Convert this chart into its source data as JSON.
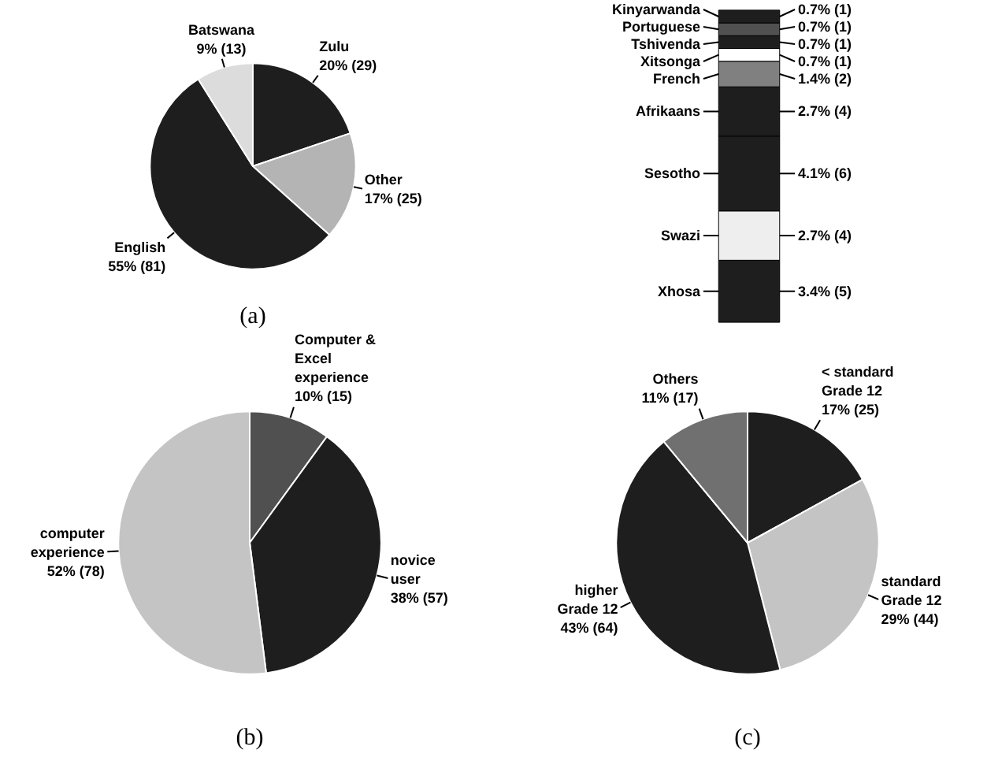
{
  "chart_data": [
    {
      "type": "pie",
      "title": "(a)",
      "categories": [
        "Zulu",
        "Other",
        "English",
        "Batswana"
      ],
      "values": [
        20,
        17,
        55,
        9
      ],
      "value_labels": [
        "20% (29)",
        "17% (25)",
        "55% (81)",
        "9% (13)"
      ],
      "colors": [
        "#1e1e1e",
        "#b4b4b4",
        "#1e1e1e",
        "#dcdcdc"
      ]
    },
    {
      "type": "bar",
      "stacked": true,
      "categories": [
        null
      ],
      "tick_labels": false,
      "legend": "left",
      "series": [
        {
          "name": "Xhosa",
          "color": "#1e1e1e",
          "values": [
            3.4
          ],
          "value_labels": [
            "3.4% (5)"
          ]
        },
        {
          "name": "Swazi",
          "color": "#eeeeee",
          "values": [
            2.7
          ],
          "value_labels": [
            "2.7% (4)"
          ]
        },
        {
          "name": "Sesotho",
          "color": "#1e1e1e",
          "values": [
            4.1
          ],
          "value_labels": [
            "4.1% (6)"
          ]
        },
        {
          "name": "Afrikaans",
          "color": "#1e1e1e",
          "values": [
            2.7
          ],
          "value_labels": [
            "2.7% (4)"
          ]
        },
        {
          "name": "French",
          "color": "#808080",
          "values": [
            1.4
          ],
          "value_labels": [
            "1.4% (2)"
          ]
        },
        {
          "name": "Xitsonga",
          "color": "#ffffff",
          "values": [
            0.7
          ],
          "value_labels": [
            "0.7% (1)"
          ]
        },
        {
          "name": "Tshivenda",
          "color": "#1e1e1e",
          "values": [
            0.7
          ],
          "value_labels": [
            "0.7% (1)"
          ]
        },
        {
          "name": "Portuguese",
          "color": "#505050",
          "values": [
            0.7
          ],
          "value_labels": [
            "0.7% (1)"
          ]
        },
        {
          "name": "Kinyarwanda",
          "color": "#1e1e1e",
          "values": [
            0.7
          ],
          "value_labels": [
            "0.7% (1)"
          ]
        }
      ]
    },
    {
      "type": "pie",
      "title": "(b)",
      "categories": [
        "Computer & Excel experience",
        "novice user",
        "computer experience"
      ],
      "values": [
        10,
        38,
        52
      ],
      "value_labels": [
        "10% (15)",
        "38% (57)",
        "52% (78)"
      ],
      "colors": [
        "#505050",
        "#1e1e1e",
        "#c4c4c4"
      ]
    },
    {
      "type": "pie",
      "title": "(c)",
      "categories": [
        "< standard Grade 12",
        "standard Grade 12",
        "higher Grade 12",
        "Others"
      ],
      "values": [
        17,
        29,
        43,
        11
      ],
      "value_labels": [
        "17% (25)",
        "29% (44)",
        "43% (64)",
        "11% (17)"
      ],
      "colors": [
        "#1e1e1e",
        "#c4c4c4",
        "#1e1e1e",
        "#707070"
      ]
    }
  ]
}
